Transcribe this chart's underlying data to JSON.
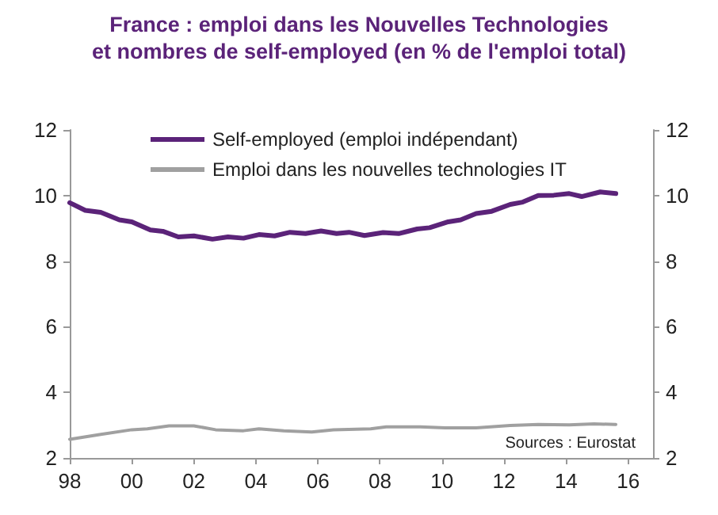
{
  "chart_data": {
    "type": "line",
    "title": "France : emploi dans les Nouvelles Technologies\net nombres de self-employed (en % de l'emploi total)",
    "series": [
      {
        "name": "Self-employed (emploi indépendant)",
        "color": "#5b2379",
        "x": [
          1998.0,
          1998.5,
          1999.0,
          1999.6,
          2000.0,
          2000.6,
          2001.0,
          2001.5,
          2002.0,
          2002.6,
          2003.1,
          2003.6,
          2004.1,
          2004.6,
          2005.1,
          2005.6,
          2006.1,
          2006.6,
          2007.0,
          2007.5,
          2008.1,
          2008.6,
          2009.2,
          2009.6,
          2010.2,
          2010.6,
          2011.1,
          2011.6,
          2012.2,
          2012.6,
          2013.1,
          2013.6,
          2014.1,
          2014.5,
          2015.1,
          2015.6
        ],
        "values": [
          9.78,
          9.55,
          9.49,
          9.26,
          9.2,
          8.95,
          8.91,
          8.74,
          8.77,
          8.67,
          8.74,
          8.7,
          8.81,
          8.77,
          8.88,
          8.84,
          8.92,
          8.84,
          8.88,
          8.78,
          8.87,
          8.84,
          8.98,
          9.02,
          9.2,
          9.26,
          9.45,
          9.52,
          9.73,
          9.8,
          10.0,
          10.01,
          10.06,
          9.97,
          10.11,
          10.06
        ]
      },
      {
        "name": "Emploi dans les nouvelles technologies IT",
        "color": "#a0a0a0",
        "x": [
          1998.0,
          1999.0,
          2000.0,
          2000.5,
          2001.2,
          2002.0,
          2002.7,
          2003.6,
          2004.1,
          2004.9,
          2005.8,
          2006.5,
          2007.7,
          2008.2,
          2009.3,
          2010.1,
          2011.1,
          2012.2,
          2013.1,
          2014.1,
          2014.9,
          2015.6
        ],
        "values": [
          2.57,
          2.72,
          2.86,
          2.89,
          2.98,
          2.98,
          2.86,
          2.83,
          2.89,
          2.83,
          2.79,
          2.86,
          2.89,
          2.95,
          2.95,
          2.92,
          2.92,
          2.99,
          3.02,
          3.01,
          3.04,
          3.02
        ]
      }
    ],
    "xlim": [
      1998,
      2016.8
    ],
    "xticks": [
      {
        "value": 1998,
        "label": "98"
      },
      {
        "value": 2000,
        "label": "00"
      },
      {
        "value": 2002,
        "label": "02"
      },
      {
        "value": 2004,
        "label": "04"
      },
      {
        "value": 2006,
        "label": "06"
      },
      {
        "value": 2008,
        "label": "08"
      },
      {
        "value": 2010,
        "label": "10"
      },
      {
        "value": 2012,
        "label": "12"
      },
      {
        "value": 2014,
        "label": "14"
      },
      {
        "value": 2016,
        "label": "16"
      }
    ],
    "ylim": [
      2,
      12
    ],
    "yticks": [
      2,
      4,
      6,
      8,
      10,
      12
    ],
    "y2lim": [
      2,
      12
    ],
    "y2ticks": [
      2,
      4,
      6,
      8,
      10,
      12
    ],
    "annotations": [
      "Sources : Eurostat"
    ],
    "legend": "top left",
    "grid": false,
    "marker": "none",
    "line_style": "solid"
  }
}
